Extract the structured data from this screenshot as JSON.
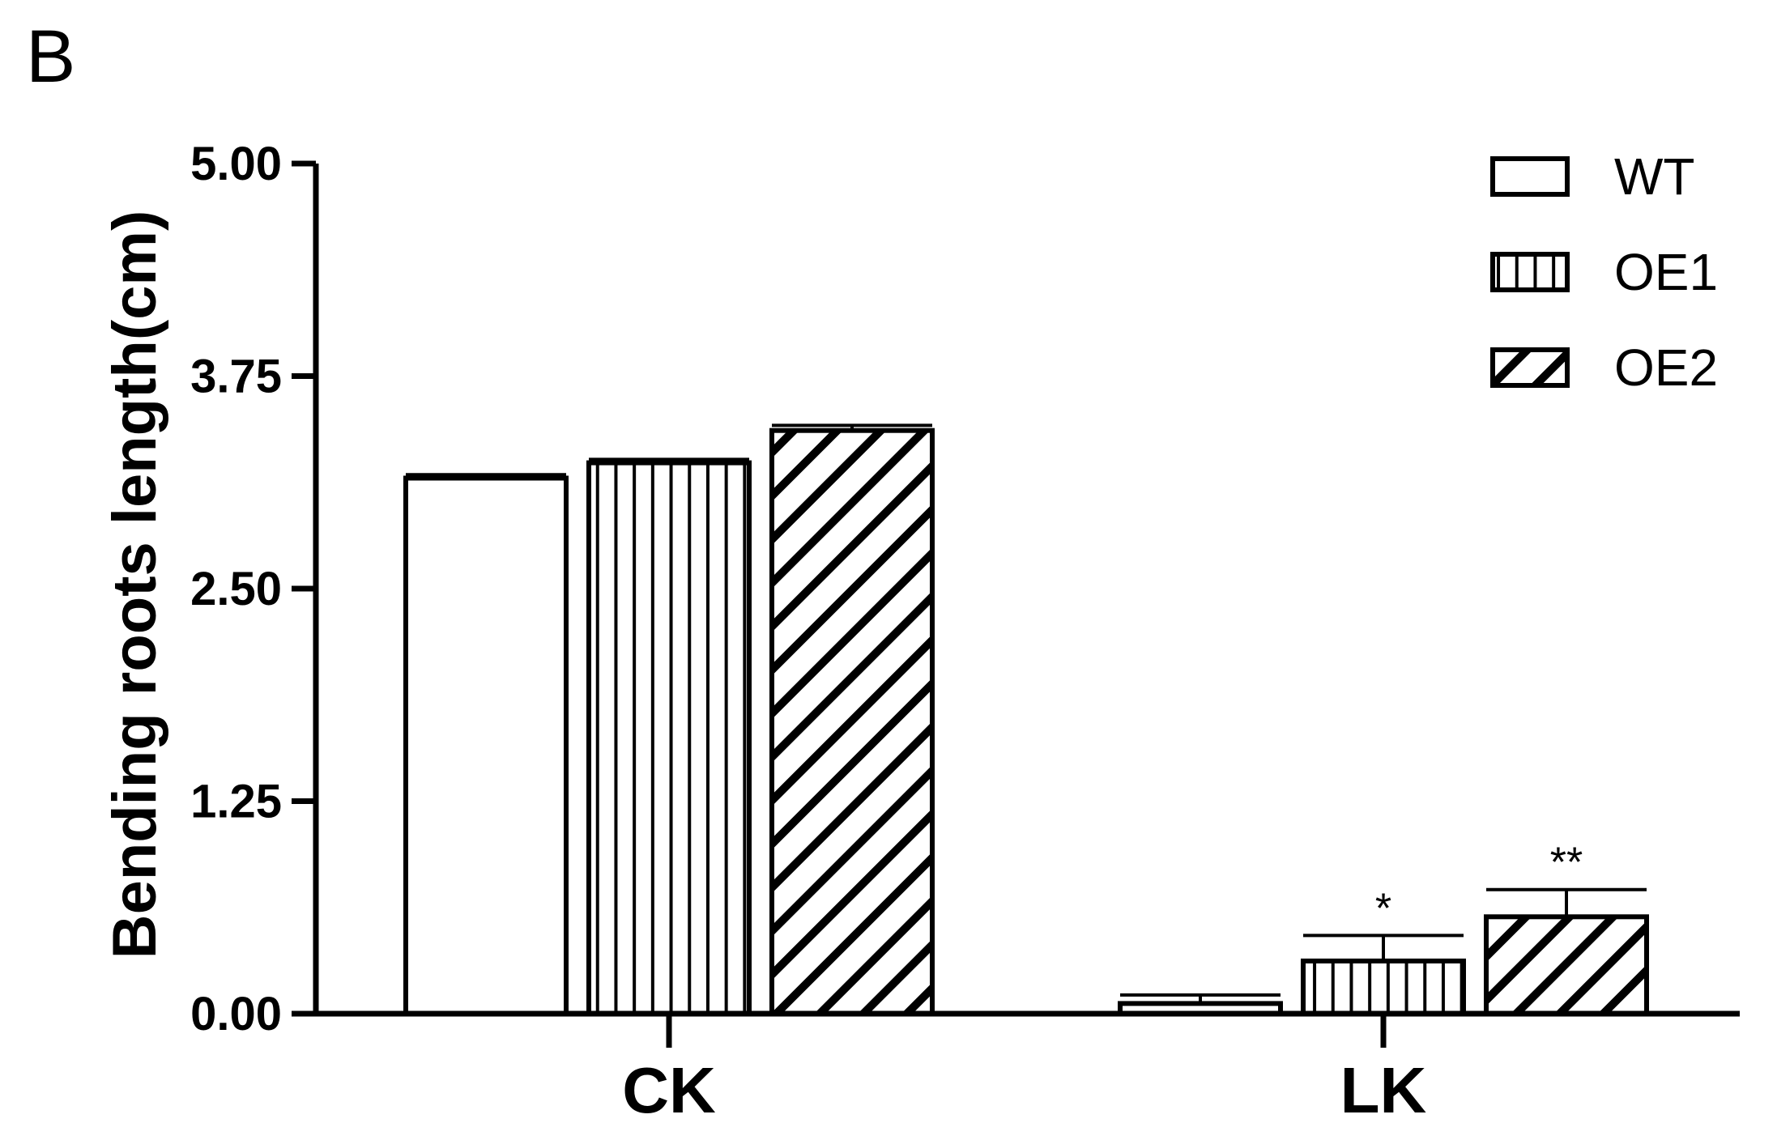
{
  "panel_label": "B",
  "chart_data": {
    "type": "bar",
    "title": "",
    "xlabel": "",
    "ylabel": "Bending roots length(cm)",
    "ylim": [
      0,
      5
    ],
    "yticks": [
      "0.00",
      "1.25",
      "2.50",
      "3.75",
      "5.00"
    ],
    "ytick_values": [
      0,
      1.25,
      2.5,
      3.75,
      5
    ],
    "categories": [
      "CK",
      "LK"
    ],
    "legend_position": "top-right",
    "grid": false,
    "series": [
      {
        "name": "WT",
        "pattern": "none",
        "values": [
          3.15,
          0.06
        ],
        "errors": [
          0.02,
          0.05
        ],
        "significance": [
          "",
          ""
        ]
      },
      {
        "name": "OE1",
        "pattern": "vertical-stripes",
        "values": [
          3.24,
          0.31
        ],
        "errors": [
          0.02,
          0.15
        ],
        "significance": [
          "",
          "*"
        ]
      },
      {
        "name": "OE2",
        "pattern": "diagonal-stripes",
        "values": [
          3.43,
          0.57
        ],
        "errors": [
          0.03,
          0.16
        ],
        "significance": [
          "",
          "**"
        ]
      }
    ],
    "colors": {
      "stroke": "#000000",
      "fill": "#ffffff"
    }
  }
}
